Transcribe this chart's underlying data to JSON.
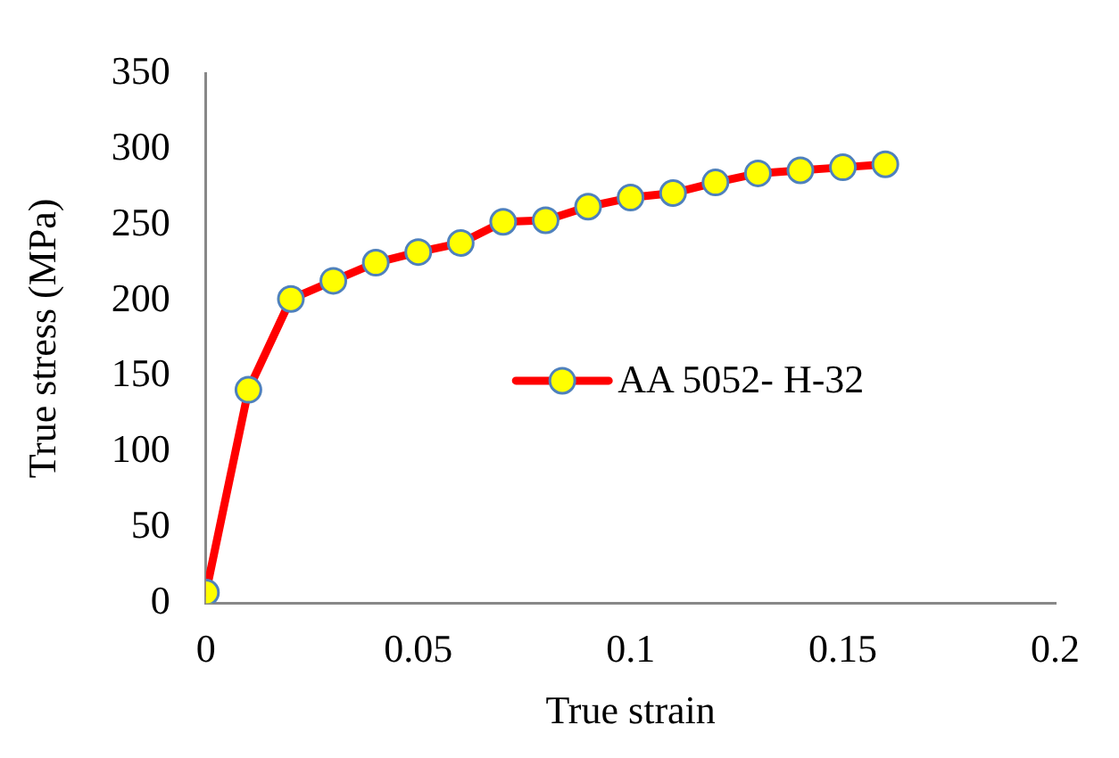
{
  "chart_data": {
    "type": "line",
    "xlabel": "True strain",
    "ylabel": "True stress (MPa)",
    "xlim": [
      0,
      0.2
    ],
    "xticks": [
      0,
      0.05,
      0.1,
      0.15,
      0.2
    ],
    "ylim": [
      0,
      350
    ],
    "yticks": [
      0,
      50,
      100,
      150,
      200,
      250,
      300,
      350
    ],
    "grid": false,
    "legend": "center right",
    "marker": "circle",
    "line_style": "solid",
    "series": [
      {
        "name": "AA 5052- H-32",
        "color": "#ff0000",
        "x": [
          0,
          0.01,
          0.02,
          0.03,
          0.04,
          0.05,
          0.06,
          0.07,
          0.08,
          0.09,
          0.1,
          0.11,
          0.12,
          0.13,
          0.14,
          0.15,
          0.16
        ],
        "values": [
          7,
          141,
          201,
          213,
          225,
          232,
          238,
          252,
          253,
          262,
          268,
          271,
          278,
          284,
          286,
          288,
          290
        ]
      }
    ]
  }
}
